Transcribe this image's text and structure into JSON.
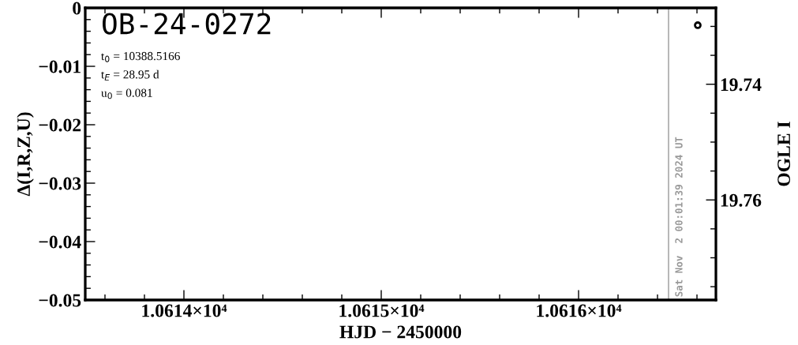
{
  "chart_data": {
    "type": "scatter",
    "title": "OB-24-0272",
    "xlabel": "HJD − 2450000",
    "ylabel": "Δ(I,R,Z,U)",
    "y2label": "OGLE I",
    "annotations": [
      "t$_{0}$ = 10388.5166",
      "t$_{E}$ = 28.95 d",
      "u$_{0}$ = 0.081",
      "Sat Nov  2 00:01:39 2024 UT"
    ],
    "xlim": [
      10613.5,
      10616.696
    ],
    "xticks": [
      {
        "value": 10614,
        "label": "1.0614×10⁴"
      },
      {
        "value": 10615,
        "label": "1.0615×10⁴"
      },
      {
        "value": 10616,
        "label": "1.0616×10⁴"
      }
    ],
    "ylim": [
      -0.05,
      0
    ],
    "yticks": [
      {
        "value": 0,
        "label": "0"
      },
      {
        "value": -0.01,
        "label": "−0.01"
      },
      {
        "value": -0.02,
        "label": "−0.02"
      },
      {
        "value": -0.03,
        "label": "−0.03"
      },
      {
        "value": -0.04,
        "label": "−0.04"
      },
      {
        "value": -0.05,
        "label": "−0.05"
      }
    ],
    "y2lim": [
      19.7773,
      19.7268
    ],
    "y2ticks": [
      19.74,
      19.76
    ],
    "series": [
      {
        "color": "#000000",
        "axis": "y2",
        "x": [
          10616.604
        ],
        "values": [
          19.7298
        ]
      }
    ],
    "marker": "circle",
    "grid": false,
    "legend": false,
    "ref_lines": [
      {
        "axis": "x",
        "value": 10616.456,
        "color": "#999999",
        "line_style": "solid"
      }
    ]
  }
}
